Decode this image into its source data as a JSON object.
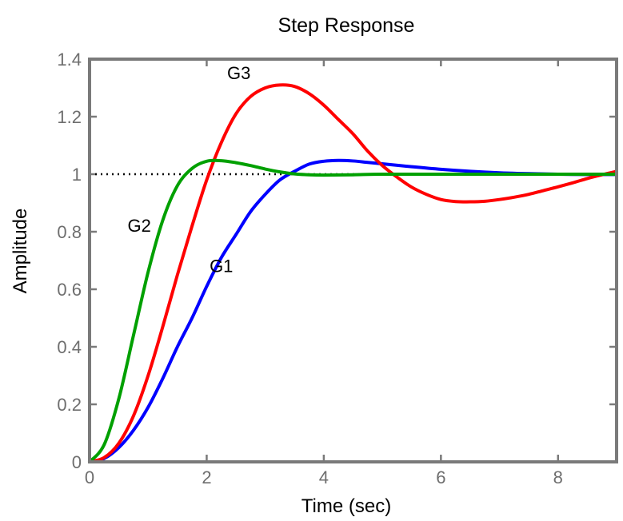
{
  "chart_data": {
    "type": "line",
    "title": "Step Response",
    "xlabel": "Time (sec)",
    "ylabel": "Amplitude",
    "xlim": [
      0,
      9
    ],
    "ylim": [
      0,
      1.4
    ],
    "xticks": [
      "0",
      "2",
      "4",
      "6",
      "8"
    ],
    "yticks": [
      "0",
      "0.2",
      "0.4",
      "0.6",
      "0.8",
      "1",
      "1.2",
      "1.4"
    ],
    "grid": false,
    "reference_line": {
      "y": 1,
      "style": "dotted",
      "color": "#000000"
    },
    "series": [
      {
        "name": "G1",
        "color": "#0000ff",
        "x": [
          0,
          0.25,
          0.5,
          0.75,
          1.0,
          1.25,
          1.5,
          1.75,
          2.0,
          2.25,
          2.5,
          2.75,
          3.0,
          3.25,
          3.5,
          3.75,
          4.0,
          4.25,
          4.5,
          4.75,
          5.0,
          5.5,
          6.0,
          6.5,
          7.0,
          7.5,
          8.0,
          8.5,
          9.0
        ],
        "y": [
          0,
          0.012,
          0.05,
          0.11,
          0.19,
          0.29,
          0.4,
          0.5,
          0.61,
          0.71,
          0.79,
          0.87,
          0.93,
          0.98,
          1.01,
          1.035,
          1.045,
          1.048,
          1.046,
          1.041,
          1.036,
          1.026,
          1.017,
          1.01,
          1.005,
          1.002,
          1.0,
          0.999,
          0.999
        ]
      },
      {
        "name": "G2",
        "color": "#00a000",
        "x": [
          0,
          0.25,
          0.5,
          0.75,
          1.0,
          1.25,
          1.5,
          1.75,
          2.0,
          2.25,
          2.5,
          2.75,
          3.0,
          3.25,
          3.5,
          3.75,
          4.0,
          4.5,
          5.0,
          6.0,
          7.0,
          8.0,
          9.0
        ],
        "y": [
          0,
          0.06,
          0.22,
          0.44,
          0.66,
          0.84,
          0.96,
          1.02,
          1.045,
          1.047,
          1.04,
          1.03,
          1.018,
          1.008,
          1.001,
          0.998,
          0.997,
          0.998,
          1.0,
          1.0,
          1.0,
          1.0,
          1.0
        ]
      },
      {
        "name": "G3",
        "color": "#ff0000",
        "x": [
          0,
          0.25,
          0.5,
          0.75,
          1.0,
          1.25,
          1.5,
          1.75,
          2.0,
          2.25,
          2.5,
          2.75,
          3.0,
          3.25,
          3.5,
          3.75,
          4.0,
          4.25,
          4.5,
          4.75,
          5.0,
          5.25,
          5.5,
          5.75,
          6.0,
          6.25,
          6.5,
          6.75,
          7.0,
          7.25,
          7.5,
          7.75,
          8.0,
          8.25,
          8.5,
          8.75,
          9.0
        ],
        "y": [
          0,
          0.015,
          0.065,
          0.16,
          0.3,
          0.47,
          0.65,
          0.82,
          0.98,
          1.11,
          1.21,
          1.27,
          1.3,
          1.31,
          1.305,
          1.28,
          1.24,
          1.19,
          1.14,
          1.08,
          1.03,
          0.99,
          0.955,
          0.93,
          0.912,
          0.905,
          0.904,
          0.906,
          0.912,
          0.92,
          0.93,
          0.943,
          0.956,
          0.97,
          0.985,
          0.998,
          1.01
        ]
      }
    ],
    "annotations": [
      {
        "text": "G3",
        "x": 2.55,
        "y": 1.33
      },
      {
        "text": "G2",
        "x": 0.85,
        "y": 0.8
      },
      {
        "text": "G1",
        "x": 2.25,
        "y": 0.66
      }
    ]
  }
}
